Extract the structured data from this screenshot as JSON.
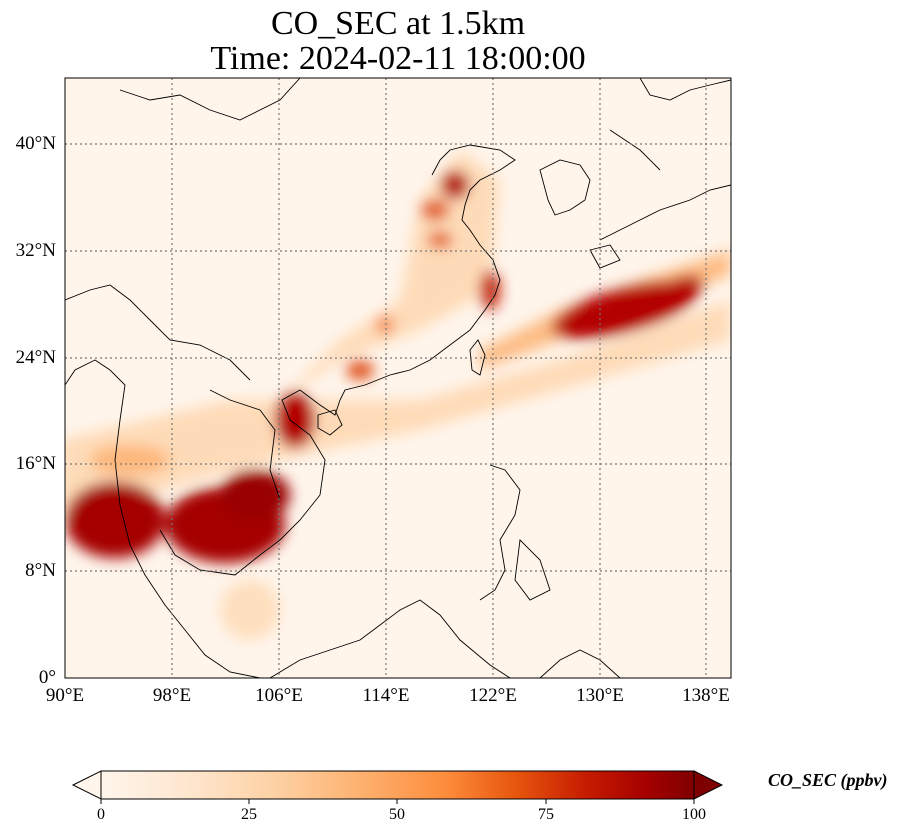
{
  "title_line1": "CO_SEC at 1.5km",
  "title_line2": "Time: 2024-02-11 18:00:00",
  "map": {
    "lon_range": [
      90,
      139.5
    ],
    "lat_range": [
      0,
      45
    ],
    "lon_ticks": [
      "90°E",
      "98°E",
      "106°E",
      "114°E",
      "122°E",
      "130°E",
      "138°E"
    ],
    "lat_ticks": [
      "0°",
      "8°N",
      "16°N",
      "24°N",
      "32°N",
      "40°N"
    ],
    "gridlines": true,
    "background_color": "#fff5eb",
    "colormap": "OrRd"
  },
  "colorbar": {
    "label": "CO_SEC (ppbv)",
    "ticks": [
      "0",
      "25",
      "50",
      "75",
      "100"
    ],
    "min": 0,
    "max": 100,
    "extend": "both",
    "colors": [
      "#fff5eb",
      "#fee6ce",
      "#fdd0a2",
      "#fdae6b",
      "#fd8d3c",
      "#f16913",
      "#d94801",
      "#b30000",
      "#7f0000"
    ]
  }
}
